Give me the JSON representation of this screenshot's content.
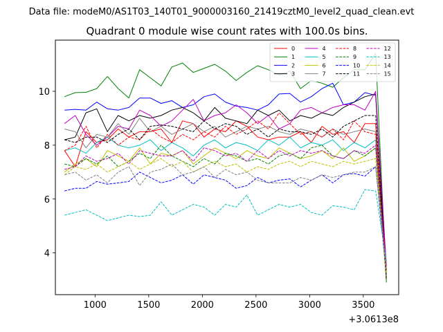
{
  "suptitle": "Data file: modeM0/AS1T03_140T01_9000003160_21419cztM0_level2_quad_clean.evt",
  "chart_data": {
    "type": "line",
    "title": "Quadrant 0 module wise count rates with 100.0s bins.",
    "xlabel": "",
    "ylabel": "",
    "x_offset_label": "+3.0613e8",
    "xlim": [
      630,
      3830
    ],
    "ylim": [
      2.45,
      11.9
    ],
    "xticks": [
      1000,
      1500,
      2000,
      2500,
      3000,
      3500
    ],
    "xtick_labels": [
      "1000",
      "1500",
      "2000",
      "2500",
      "3000",
      "3500"
    ],
    "yticks": [
      4,
      6,
      8,
      10
    ],
    "ytick_labels": [
      "4",
      "6",
      "8",
      "10"
    ],
    "legend_position": "top-right",
    "x": [
      715,
      815,
      915,
      1015,
      1115,
      1215,
      1315,
      1415,
      1515,
      1615,
      1715,
      1815,
      1915,
      2015,
      2115,
      2215,
      2315,
      2415,
      2515,
      2615,
      2715,
      2815,
      2915,
      3015,
      3115,
      3215,
      3315,
      3415,
      3515,
      3615,
      3715
    ],
    "series": [
      {
        "name": "0",
        "color": "#ff0000",
        "dash": "solid",
        "values": [
          7.8,
          7.2,
          8.5,
          8.1,
          8.2,
          8.6,
          8.3,
          8.5,
          8.5,
          8.6,
          8.1,
          8.9,
          8.8,
          8.3,
          8.6,
          8.5,
          8.9,
          8.7,
          8.3,
          8.2,
          8.3,
          8.3,
          8.5,
          8.1,
          8.7,
          8.4,
          8.5,
          8.1,
          8.8,
          8.8,
          3.3
        ]
      },
      {
        "name": "1",
        "color": "#008000",
        "dash": "solid",
        "values": [
          9.8,
          9.95,
          9.96,
          10.1,
          10.55,
          10.1,
          9.75,
          10.8,
          10.5,
          10.2,
          10.9,
          11.05,
          10.7,
          10.85,
          11.0,
          10.75,
          10.4,
          10.7,
          10.95,
          10.8,
          10.6,
          10.75,
          10.1,
          10.4,
          10.3,
          10.15,
          10.5,
          10.8,
          10.8,
          11.4,
          2.9
        ]
      },
      {
        "name": "2",
        "color": "#0000ff",
        "dash": "solid",
        "values": [
          9.3,
          9.33,
          9.3,
          9.6,
          9.35,
          9.3,
          9.4,
          9.75,
          9.75,
          9.55,
          9.65,
          9.4,
          9.5,
          9.8,
          9.9,
          9.6,
          9.45,
          9.4,
          9.3,
          9.5,
          9.9,
          9.92,
          9.6,
          9.8,
          10.1,
          10.3,
          9.5,
          9.6,
          9.95,
          9.85,
          3.4
        ]
      },
      {
        "name": "3",
        "color": "#000000",
        "dash": "solid",
        "values": [
          8.2,
          8.3,
          9.2,
          9.35,
          8.5,
          9.1,
          8.9,
          9.1,
          9.0,
          9.1,
          9.3,
          9.4,
          9.2,
          8.9,
          9.4,
          9.0,
          8.9,
          8.8,
          9.3,
          9.1,
          9.3,
          8.9,
          9.1,
          9.0,
          9.2,
          9.1,
          9.4,
          9.6,
          9.8,
          9.9,
          3.0
        ]
      },
      {
        "name": "4",
        "color": "#bf00bf",
        "dash": "solid",
        "values": [
          8.8,
          9.1,
          8.4,
          8.0,
          8.3,
          8.7,
          8.6,
          9.3,
          9.1,
          8.7,
          8.9,
          9.3,
          9.7,
          8.9,
          9.1,
          9.2,
          9.5,
          9.2,
          8.8,
          9.1,
          8.6,
          8.8,
          9.3,
          9.4,
          9.2,
          9.4,
          9.5,
          9.5,
          9.3,
          10.0,
          3.5
        ]
      },
      {
        "name": "5",
        "color": "#00bfbf",
        "dash": "solid",
        "values": [
          7.8,
          7.9,
          7.7,
          8.1,
          8.3,
          8.0,
          7.9,
          8.0,
          8.2,
          7.8,
          8.1,
          7.9,
          7.6,
          8.0,
          8.2,
          7.9,
          8.1,
          8.0,
          7.8,
          8.2,
          8.0,
          8.3,
          7.9,
          8.1,
          8.0,
          8.2,
          7.8,
          8.1,
          7.9,
          8.2,
          3.1
        ]
      },
      {
        "name": "6",
        "color": "#bfbf00",
        "dash": "solid",
        "values": [
          7.0,
          7.3,
          7.5,
          7.2,
          7.8,
          7.6,
          7.4,
          7.9,
          7.3,
          7.7,
          7.6,
          7.8,
          7.3,
          7.6,
          7.9,
          7.7,
          7.5,
          7.8,
          7.6,
          7.5,
          7.9,
          7.7,
          7.5,
          7.6,
          7.8,
          7.5,
          7.9,
          7.4,
          7.6,
          7.9,
          3.0
        ]
      },
      {
        "name": "7",
        "color": "#808080",
        "dash": "solid",
        "values": [
          8.6,
          8.5,
          7.9,
          8.4,
          8.3,
          8.8,
          8.4,
          9.0,
          8.5,
          8.7,
          8.4,
          8.6,
          8.8,
          8.5,
          8.7,
          8.3,
          8.5,
          8.7,
          8.6,
          8.7,
          8.5,
          8.4,
          8.6,
          8.5,
          8.3,
          8.6,
          8.4,
          8.5,
          8.6,
          8.5,
          3.1
        ]
      },
      {
        "name": "8",
        "color": "#ff0000",
        "dash": "dashed",
        "values": [
          7.8,
          8.0,
          8.7,
          7.9,
          8.4,
          8.0,
          8.3,
          8.2,
          8.6,
          8.3,
          8.1,
          8.4,
          8.2,
          8.5,
          8.3,
          8.7,
          8.4,
          8.6,
          8.9,
          8.6,
          9.2,
          8.8,
          8.4,
          8.5,
          8.3,
          8.6,
          8.2,
          8.9,
          8.5,
          8.4,
          3.3
        ]
      },
      {
        "name": "9",
        "color": "#008000",
        "dash": "dashed",
        "values": [
          7.3,
          7.2,
          7.5,
          7.3,
          7.6,
          7.2,
          7.4,
          7.7,
          7.5,
          8.0,
          7.6,
          7.4,
          7.2,
          7.5,
          7.3,
          7.7,
          7.6,
          7.4,
          7.5,
          7.3,
          7.6,
          7.7,
          7.5,
          7.9,
          8.0,
          7.6,
          7.5,
          7.8,
          7.6,
          7.9,
          3.0
        ]
      },
      {
        "name": "10",
        "color": "#0000ff",
        "dash": "dashed",
        "values": [
          6.3,
          6.4,
          6.4,
          6.65,
          6.55,
          6.6,
          6.65,
          7.0,
          6.8,
          6.6,
          6.7,
          6.9,
          6.55,
          6.9,
          6.8,
          6.7,
          6.4,
          6.5,
          6.8,
          6.6,
          6.7,
          6.75,
          6.45,
          6.7,
          6.9,
          6.6,
          6.9,
          6.95,
          6.85,
          7.2,
          3.2
        ]
      },
      {
        "name": "11",
        "color": "#000000",
        "dash": "dashed",
        "values": [
          8.2,
          8.1,
          8.3,
          8.3,
          8.1,
          8.4,
          8.6,
          8.2,
          8.7,
          8.75,
          8.7,
          8.6,
          8.5,
          8.9,
          8.6,
          8.8,
          8.7,
          8.4,
          8.6,
          8.3,
          8.6,
          8.5,
          8.5,
          8.4,
          8.6,
          8.3,
          8.7,
          8.9,
          9.1,
          9.1,
          3.0
        ]
      },
      {
        "name": "12",
        "color": "#bf00bf",
        "dash": "dashed",
        "values": [
          7.1,
          7.2,
          7.6,
          7.4,
          7.5,
          7.7,
          7.3,
          7.8,
          7.7,
          7.6,
          7.6,
          7.8,
          7.4,
          7.9,
          7.8,
          7.6,
          7.7,
          7.4,
          7.8,
          7.5,
          7.8,
          7.6,
          7.8,
          7.7,
          7.8,
          7.6,
          7.5,
          7.8,
          7.7,
          8.0,
          3.4
        ]
      },
      {
        "name": "13",
        "color": "#00bfbf",
        "dash": "dashed",
        "values": [
          5.4,
          5.5,
          5.6,
          5.4,
          5.2,
          5.3,
          5.4,
          5.35,
          5.4,
          5.9,
          5.4,
          5.6,
          5.8,
          5.7,
          5.4,
          5.8,
          5.7,
          6.15,
          5.4,
          5.6,
          5.8,
          5.7,
          5.8,
          5.5,
          5.4,
          5.75,
          5.7,
          5.6,
          6.35,
          6.3,
          3.7
        ]
      },
      {
        "name": "14",
        "color": "#bfbf00",
        "dash": "dashed",
        "values": [
          6.9,
          7.2,
          7.1,
          7.3,
          7.0,
          7.2,
          7.4,
          7.1,
          7.3,
          7.5,
          7.2,
          7.4,
          7.0,
          7.2,
          7.4,
          7.2,
          7.3,
          7.0,
          7.2,
          7.1,
          7.3,
          7.4,
          7.2,
          7.4,
          7.3,
          7.2,
          7.4,
          7.3,
          7.4,
          7.5,
          3.2
        ]
      },
      {
        "name": "15",
        "color": "#808080",
        "dash": "dashed",
        "values": [
          6.9,
          7.0,
          6.7,
          6.9,
          6.6,
          7.0,
          7.2,
          6.5,
          7.0,
          7.1,
          7.3,
          6.9,
          7.0,
          7.2,
          6.8,
          7.1,
          6.9,
          7.0,
          6.7,
          6.6,
          6.6,
          6.6,
          6.8,
          6.7,
          6.9,
          6.8,
          6.9,
          7.0,
          7.0,
          7.2,
          3.4
        ]
      }
    ]
  }
}
